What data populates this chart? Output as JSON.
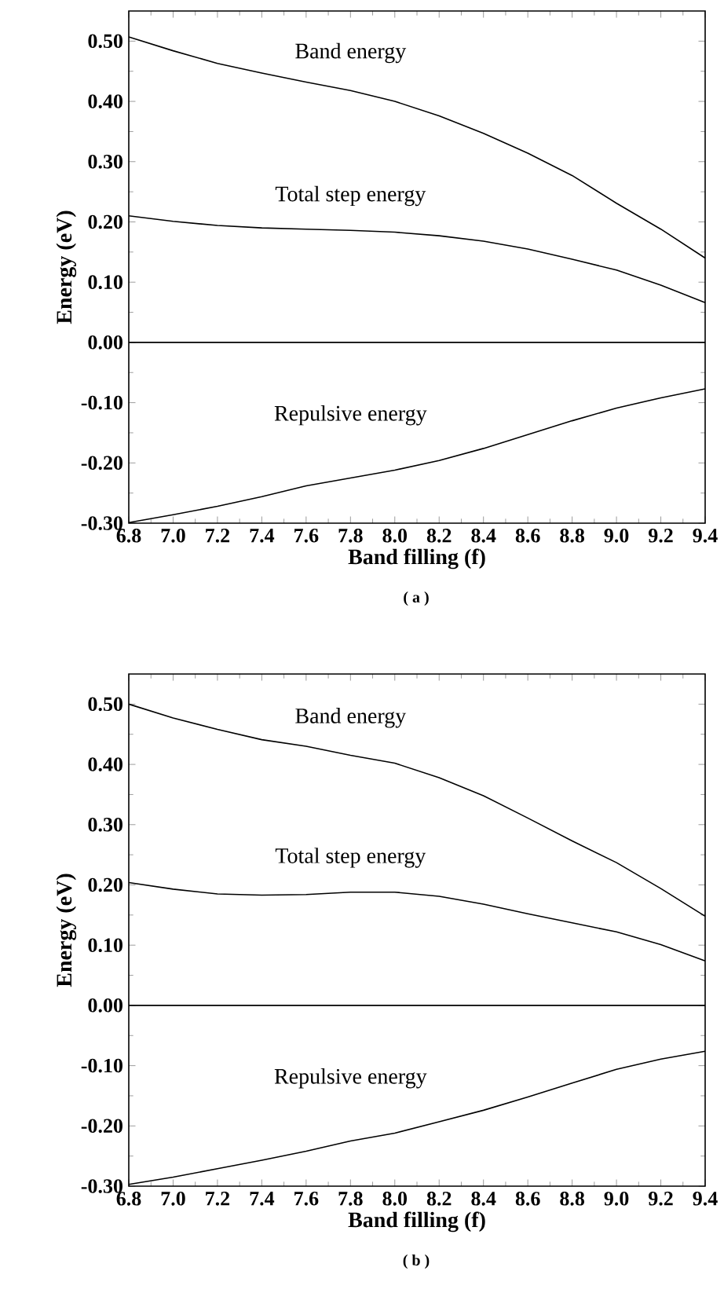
{
  "chart_data": [
    {
      "type": "line",
      "xlabel": "Band filling (f)",
      "ylabel": "Energy (eV)",
      "annotations": [
        "( a )"
      ],
      "xlim": [
        6.8,
        9.4
      ],
      "ylim": [
        -0.3,
        0.55
      ],
      "xticks": [
        6.8,
        {
          "value": 7.0,
          "label": "7.0"
        },
        7.2,
        7.4,
        7.6,
        7.8,
        {
          "value": 8.0,
          "label": "8.0"
        },
        8.2,
        8.4,
        8.6,
        8.8,
        {
          "value": 9.0,
          "label": "9.0"
        },
        9.2,
        9.4
      ],
      "yticks": [
        {
          "value": -0.3,
          "label": "-0.30"
        },
        {
          "value": -0.2,
          "label": "-0.20"
        },
        {
          "value": -0.1,
          "label": "-0.10"
        },
        {
          "value": 0,
          "label": "0.00"
        },
        {
          "value": 0.1,
          "label": "0.10"
        },
        {
          "value": 0.2,
          "label": "0.20"
        },
        {
          "value": 0.3,
          "label": "0.30"
        },
        {
          "value": 0.4,
          "label": "0.40"
        },
        {
          "value": 0.5,
          "label": "0.50"
        }
      ],
      "x": [
        6.8,
        7.0,
        7.2,
        7.4,
        7.6,
        7.8,
        8.0,
        8.2,
        8.4,
        8.6,
        8.8,
        9.0,
        9.2,
        9.4
      ],
      "ref_lines": [
        {
          "axis": "y",
          "value": 0,
          "color": "#000000"
        }
      ],
      "series": [
        {
          "name": "Band energy",
          "color": "#000000",
          "values": [
            0.507,
            0.484,
            0.463,
            0.447,
            0.432,
            0.418,
            0.4,
            0.376,
            0.347,
            0.314,
            0.277,
            0.231,
            0.188,
            0.14
          ]
        },
        {
          "name": "Total step energy",
          "color": "#000000",
          "values": [
            0.21,
            0.201,
            0.194,
            0.19,
            0.188,
            0.186,
            0.183,
            0.177,
            0.168,
            0.155,
            0.138,
            0.12,
            0.095,
            0.066
          ]
        },
        {
          "name": "Repulsive energy",
          "color": "#000000",
          "values": [
            -0.299,
            -0.286,
            -0.272,
            -0.256,
            -0.238,
            -0.225,
            -0.212,
            -0.196,
            -0.176,
            -0.153,
            -0.13,
            -0.109,
            -0.092,
            -0.077
          ]
        }
      ]
    },
    {
      "type": "line",
      "xlabel": "Band filling (f)",
      "ylabel": "Energy (eV)",
      "annotations": [
        "( b )"
      ],
      "xlim": [
        6.8,
        9.4
      ],
      "ylim": [
        -0.3,
        0.55
      ],
      "xticks": [
        6.8,
        {
          "value": 7.0,
          "label": "7.0"
        },
        7.2,
        7.4,
        7.6,
        7.8,
        {
          "value": 8.0,
          "label": "8.0"
        },
        8.2,
        8.4,
        8.6,
        8.8,
        {
          "value": 9.0,
          "label": "9.0"
        },
        9.2,
        9.4
      ],
      "yticks": [
        {
          "value": -0.3,
          "label": "-0.30"
        },
        {
          "value": -0.2,
          "label": "-0.20"
        },
        {
          "value": -0.1,
          "label": "-0.10"
        },
        {
          "value": 0,
          "label": "0.00"
        },
        {
          "value": 0.1,
          "label": "0.10"
        },
        {
          "value": 0.2,
          "label": "0.20"
        },
        {
          "value": 0.3,
          "label": "0.30"
        },
        {
          "value": 0.4,
          "label": "0.40"
        },
        {
          "value": 0.5,
          "label": "0.50"
        }
      ],
      "x": [
        6.8,
        7.0,
        7.2,
        7.4,
        7.6,
        7.8,
        8.0,
        8.2,
        8.4,
        8.6,
        8.8,
        9.0,
        9.2,
        9.4
      ],
      "ref_lines": [
        {
          "axis": "y",
          "value": 0,
          "color": "#000000"
        }
      ],
      "series": [
        {
          "name": "Band energy",
          "color": "#000000",
          "values": [
            0.5,
            0.477,
            0.458,
            0.441,
            0.43,
            0.415,
            0.402,
            0.378,
            0.348,
            0.311,
            0.273,
            0.237,
            0.194,
            0.148
          ]
        },
        {
          "name": "Total step energy",
          "color": "#000000",
          "values": [
            0.204,
            0.193,
            0.185,
            0.183,
            0.184,
            0.188,
            0.188,
            0.181,
            0.168,
            0.152,
            0.137,
            0.122,
            0.101,
            0.074
          ]
        },
        {
          "name": "Repulsive energy",
          "color": "#000000",
          "values": [
            -0.297,
            -0.285,
            -0.271,
            -0.257,
            -0.242,
            -0.225,
            -0.212,
            -0.193,
            -0.174,
            -0.152,
            -0.129,
            -0.106,
            -0.089,
            -0.076
          ]
        }
      ]
    }
  ]
}
